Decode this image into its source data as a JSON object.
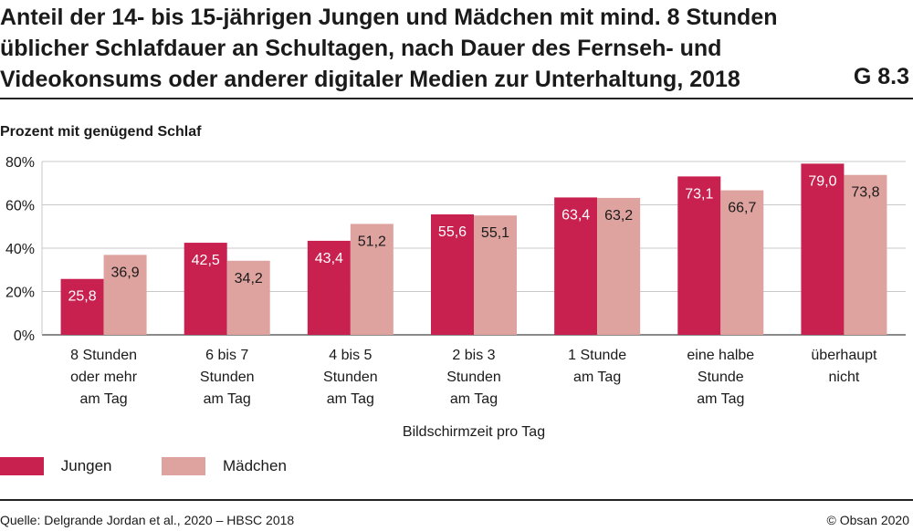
{
  "header": {
    "title": "Anteil der 14- bis 15-jährigen Jungen und Mädchen mit mind. 8 Stunden üblicher Schlafdauer an Schultagen, nach Dauer des Fernseh- und Videokonsums oder anderer digitaler Medien zur Unterhaltung, 2018",
    "code": "G 8.3"
  },
  "footer": {
    "source": "Quelle: Delgrande Jordan et al., 2020 – HBSC 2018",
    "copyright": "© Obsan 2020"
  },
  "colors": {
    "jungen": "#c8204f",
    "maedchen": "#dfa39f",
    "grid": "#c8c8c8",
    "text": "#1a1a1a"
  },
  "chart_data": {
    "type": "bar",
    "title": "Anteil der 14- bis 15-jährigen Jungen und Mädchen mit mind. 8 Stunden üblicher Schlafdauer an Schultagen, nach Dauer des Fernseh- und Videokonsums oder anderer digitaler Medien zur Unterhaltung, 2018",
    "ylabel": "Prozent mit genügend Schlaf",
    "xlabel": "Bildschirmzeit pro Tag",
    "ylim": [
      0,
      80
    ],
    "yticks": [
      0,
      20,
      40,
      60,
      80
    ],
    "ytick_labels": [
      "0%",
      "20%",
      "40%",
      "60%",
      "80%"
    ],
    "grid": true,
    "legend_position": "bottom-left",
    "categories": [
      [
        "8 Stunden",
        "oder mehr",
        "am Tag"
      ],
      [
        "6 bis 7",
        "Stunden",
        "am Tag"
      ],
      [
        "4 bis 5",
        "Stunden",
        "am Tag"
      ],
      [
        "2 bis 3",
        "Stunden",
        "am Tag"
      ],
      [
        "1 Stunde",
        "am Tag"
      ],
      [
        "eine halbe",
        "Stunde",
        "am Tag"
      ],
      [
        "überhaupt",
        "nicht"
      ]
    ],
    "series": [
      {
        "name": "Jungen",
        "values": [
          25.8,
          42.5,
          43.4,
          55.6,
          63.4,
          73.1,
          79.0
        ],
        "labels": [
          "25,8",
          "42,5",
          "43,4",
          "55,6",
          "63,4",
          "73,1",
          "79,0"
        ]
      },
      {
        "name": "Mädchen",
        "values": [
          36.9,
          34.2,
          51.2,
          55.1,
          63.2,
          66.7,
          73.8
        ],
        "labels": [
          "36,9",
          "34,2",
          "51,2",
          "55,1",
          "63,2",
          "66,7",
          "73,8"
        ]
      }
    ]
  }
}
